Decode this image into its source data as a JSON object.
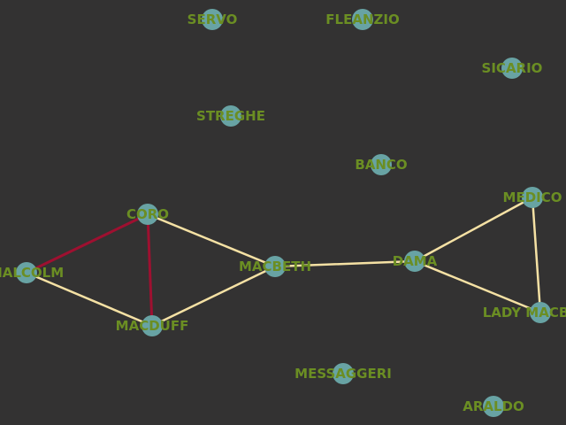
{
  "colors": {
    "background": "#333232",
    "node_fill": "#68a3a4",
    "label": "#6b8e23",
    "edge_default": "#f5e1a4",
    "edge_highlight": "#9e1030"
  },
  "nodes": [
    {
      "id": "servo",
      "label": "SERVO"
    },
    {
      "id": "fleanzio",
      "label": "FLEANZIO"
    },
    {
      "id": "sicario",
      "label": "SICARIO"
    },
    {
      "id": "streghe",
      "label": "STREGHE"
    },
    {
      "id": "banco",
      "label": "BANCO"
    },
    {
      "id": "medico",
      "label": "MEDICO"
    },
    {
      "id": "coro",
      "label": "CORO"
    },
    {
      "id": "malcolm",
      "label": "MALCOLM"
    },
    {
      "id": "macbeth",
      "label": "MACBETH"
    },
    {
      "id": "dama",
      "label": "DAMA"
    },
    {
      "id": "lady-macbeth",
      "label": "LADY MACBETH"
    },
    {
      "id": "macduff",
      "label": "MACDUFF"
    },
    {
      "id": "messaggeri",
      "label": "MESSAGGERI"
    },
    {
      "id": "araldo",
      "label": "ARALDO"
    }
  ],
  "edges": [
    {
      "source": "coro",
      "target": "malcolm",
      "highlight": true
    },
    {
      "source": "coro",
      "target": "macduff",
      "highlight": true
    },
    {
      "source": "coro",
      "target": "macbeth",
      "highlight": false
    },
    {
      "source": "malcolm",
      "target": "macduff",
      "highlight": false
    },
    {
      "source": "macduff",
      "target": "macbeth",
      "highlight": false
    },
    {
      "source": "macbeth",
      "target": "dama",
      "highlight": false
    },
    {
      "source": "dama",
      "target": "medico",
      "highlight": false
    },
    {
      "source": "dama",
      "target": "lady-macbeth",
      "highlight": false
    },
    {
      "source": "medico",
      "target": "lady-macbeth",
      "highlight": false
    }
  ]
}
